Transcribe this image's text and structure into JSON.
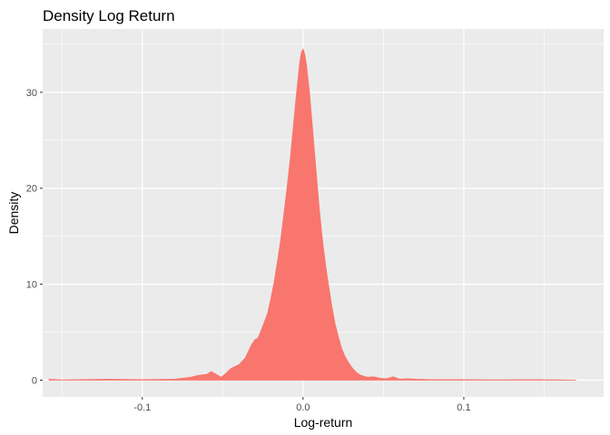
{
  "chart_data": {
    "type": "area",
    "title": "Density Log Return",
    "xlabel": "Log-return",
    "ylabel": "Density",
    "xlim": [
      -0.162,
      0.187
    ],
    "ylim": [
      -1.75,
      36.6
    ],
    "x_ticks": [
      -0.1,
      0.0,
      0.1
    ],
    "x_tick_labels": [
      "-0.1",
      "0.0",
      "0.1"
    ],
    "y_ticks": [
      0,
      10,
      20,
      30
    ],
    "y_tick_labels": [
      "0",
      "10",
      "20",
      "30"
    ],
    "grid": true,
    "fill_color": "#F8766D",
    "panel_color": "#EBEBEB",
    "grid_color": "#FFFFFF",
    "x": [
      -0.158,
      -0.15,
      -0.14,
      -0.12,
      -0.1,
      -0.08,
      -0.07,
      -0.065,
      -0.06,
      -0.057,
      -0.054,
      -0.051,
      -0.048,
      -0.045,
      -0.04,
      -0.036,
      -0.032,
      -0.03,
      -0.028,
      -0.026,
      -0.024,
      -0.022,
      -0.02,
      -0.018,
      -0.016,
      -0.014,
      -0.012,
      -0.01,
      -0.008,
      -0.006,
      -0.004,
      -0.002,
      -0.001,
      0.0,
      0.001,
      0.002,
      0.004,
      0.006,
      0.008,
      0.01,
      0.012,
      0.014,
      0.016,
      0.018,
      0.02,
      0.022,
      0.024,
      0.026,
      0.028,
      0.03,
      0.032,
      0.034,
      0.036,
      0.04,
      0.044,
      0.048,
      0.052,
      0.056,
      0.06,
      0.065,
      0.07,
      0.08,
      0.1,
      0.12,
      0.14,
      0.16,
      0.17
    ],
    "y": [
      0.1,
      0.02,
      0.05,
      0.1,
      0.05,
      0.1,
      0.3,
      0.5,
      0.6,
      0.9,
      0.6,
      0.3,
      0.7,
      1.2,
      1.6,
      2.3,
      3.7,
      4.2,
      4.4,
      5.2,
      6.1,
      7.0,
      8.5,
      10.2,
      12.3,
      14.5,
      17.2,
      20.0,
      23.0,
      26.5,
      30.0,
      33.2,
      34.2,
      34.5,
      34.0,
      33.0,
      30.0,
      26.0,
      22.0,
      18.0,
      14.7,
      12.0,
      9.7,
      7.6,
      5.8,
      4.5,
      3.3,
      2.5,
      1.9,
      1.4,
      1.0,
      0.7,
      0.5,
      0.3,
      0.35,
      0.2,
      0.15,
      0.35,
      0.1,
      0.15,
      0.1,
      0.05,
      0.05,
      0.03,
      0.05,
      0.03,
      0.0
    ]
  }
}
